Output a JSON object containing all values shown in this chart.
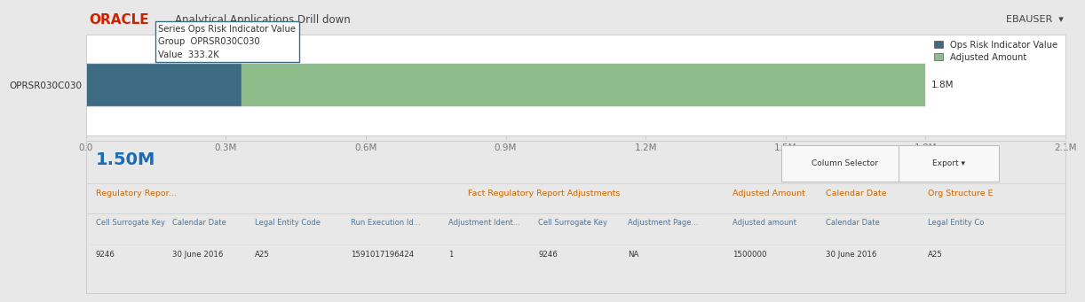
{
  "title": "Analytical Applications Drill down",
  "oracle_text": "ORACLE",
  "ebauser_text": "EBAUSER",
  "bar_label": "OPRSR030C030",
  "bar1_value": 333200,
  "bar2_value": 1800000,
  "bar2_label": "1.8M",
  "x_max": 2100000,
  "x_ticks": [
    0,
    300000,
    600000,
    900000,
    1200000,
    1500000,
    1800000,
    2100000
  ],
  "x_tick_labels": [
    "0.0",
    "0.3M",
    "0.6M",
    "0.9M",
    "1.2M",
    "1.5M",
    "1.8M",
    "2.1M"
  ],
  "bar1_color": "#3d6b82",
  "bar2_color": "#8fbc8b",
  "legend_items": [
    "Ops Risk Indicator Value",
    "Adjusted Amount"
  ],
  "legend_colors": [
    "#3d6b82",
    "#8fbc8b"
  ],
  "tooltip_series": "Ops Risk Indicator Value",
  "tooltip_group": "OPRSR030C030",
  "tooltip_value": "333.2K",
  "summary_value": "1.50M",
  "col1_header": "Regulatory Repor...",
  "col2_header": "Fact Regulatory Report Adjustments",
  "col3_header": "Adjusted Amount",
  "col4_header": "Calendar Date",
  "col5_header": "Org Structure E",
  "sub_headers": [
    "Cell Surrogate Key",
    "Calendar Date",
    "Legal Entity Code",
    "Run Execution Id...",
    "Adjustment Ident...",
    "Cell Surrogate Key",
    "Adjustment Page...",
    "Adjusted amount",
    "Calendar Date",
    "Legal Entity Co"
  ],
  "data_row": [
    "9246",
    "30 June 2016",
    "A25",
    "1591017196424",
    "1",
    "9246",
    "NA",
    "1500000",
    "30 June 2016",
    "A25"
  ],
  "bg_color": "#e8e8e8",
  "panel_color": "#ffffff",
  "oracle_color": "#cc2200",
  "title_color": "#444444",
  "summary_color": "#1a6bb5",
  "table_header_color": "#cc6600",
  "subheader_color": "#4477aa",
  "data_color": "#333333",
  "btn_color": "#f8f8f8",
  "btn_border": "#bbbbbb",
  "btn_text_color": "#333333",
  "separator_color": "#cccccc",
  "tick_color": "#777777",
  "tooltip_border": "#3d6b82"
}
